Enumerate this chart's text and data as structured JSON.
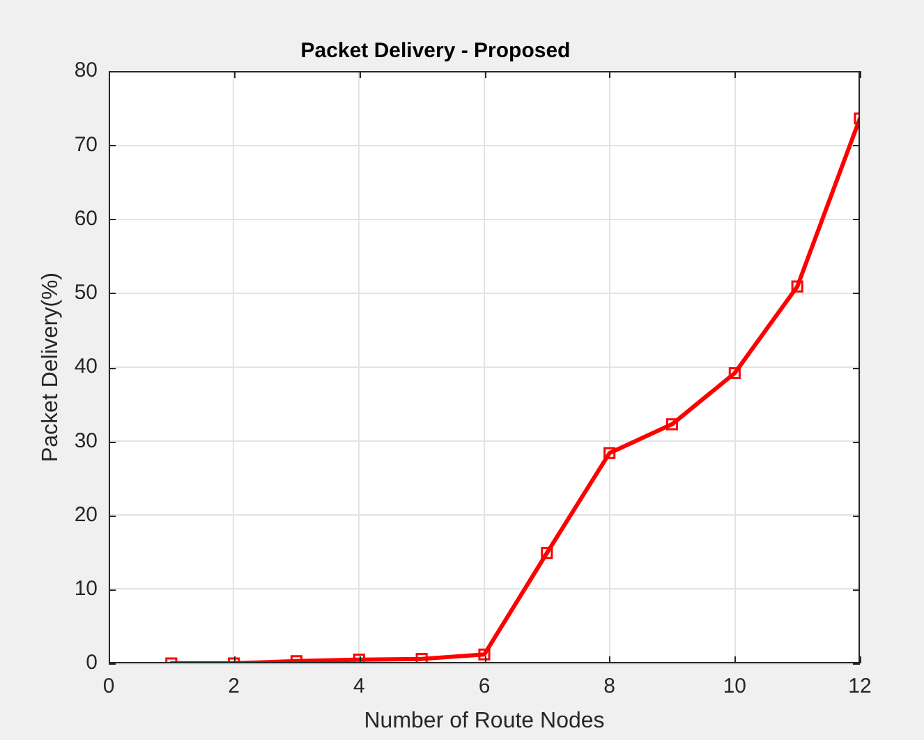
{
  "chart_data": {
    "type": "line",
    "title": "Packet Delivery - Proposed",
    "xlabel": "Number of Route Nodes",
    "ylabel": "Packet Delivery(%)",
    "x": [
      1,
      2,
      3,
      4,
      5,
      6,
      7,
      8,
      9,
      10,
      11,
      12
    ],
    "series": [
      {
        "color": "#ff0000",
        "values": [
          0,
          0,
          0.3,
          0.5,
          0.6,
          1.2,
          14.9,
          28.4,
          32.3,
          39.2,
          50.9,
          73.6
        ]
      }
    ],
    "xlim": [
      0,
      12
    ],
    "xticks": [
      0,
      2,
      4,
      6,
      8,
      10,
      12
    ],
    "ylim": [
      0,
      80
    ],
    "yticks": [
      0,
      10,
      20,
      30,
      40,
      50,
      60,
      70,
      80
    ],
    "grid": true,
    "marker": "square",
    "line_style": "solid"
  }
}
